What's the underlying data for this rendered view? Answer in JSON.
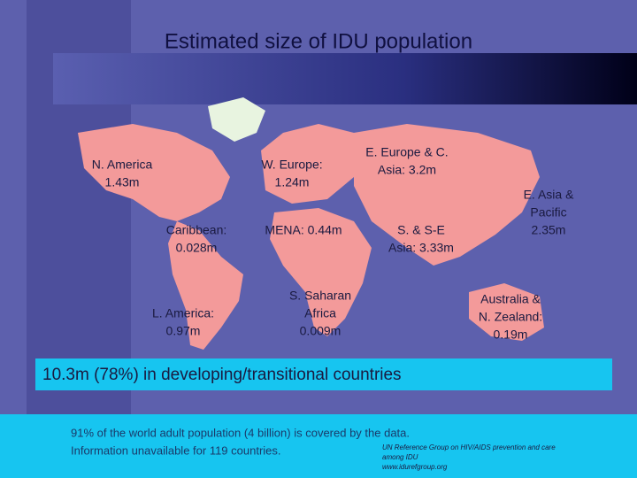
{
  "title": "Estimated size of IDU population",
  "regions": [
    {
      "lines": [
        "N. America",
        "1.43m"
      ]
    },
    {
      "lines": [
        "W. Europe:",
        "1.24m"
      ]
    },
    {
      "lines": [
        "E. Europe & C.",
        "Asia: 3.2m"
      ]
    },
    {
      "lines": [
        "E. Asia &",
        "Pacific",
        "2.35m"
      ]
    },
    {
      "lines": [
        "Caribbean:",
        "0.028m"
      ]
    },
    {
      "lines": [
        "MENA: 0.44m"
      ]
    },
    {
      "lines": [
        "S. & S-E",
        "Asia: 3.33m"
      ]
    },
    {
      "lines": [
        "S. Saharan",
        "Africa",
        "0.009m"
      ]
    },
    {
      "lines": [
        "L. America:",
        "0.97m"
      ]
    },
    {
      "lines": [
        "Australia &",
        "N. Zealand:",
        "0.19m"
      ]
    }
  ],
  "banner": "10.3m  (78%) in developing/transitional countries",
  "note": [
    "91% of the world adult population (4 billion) is covered by the data.",
    "Information unavailable for 119 countries."
  ],
  "source": [
    "UN Reference Group on HIV/AIDS prevention and care",
    "among IDU",
    "www.idurefgroup.org"
  ]
}
